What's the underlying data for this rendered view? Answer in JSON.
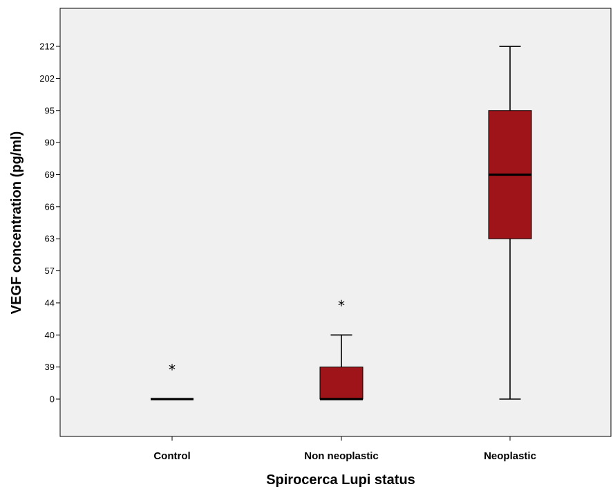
{
  "chart_data": {
    "type": "boxplot",
    "xlabel": "Spirocerca Lupi status",
    "ylabel": "VEGF concentration (pg/ml)",
    "y_tick_labels": [
      "0",
      "39",
      "40",
      "44",
      "57",
      "63",
      "66",
      "69",
      "90",
      "95",
      "202",
      "212"
    ],
    "y_scale": "categorical-rank",
    "grid": false,
    "categories": [
      "Control",
      "Non neoplastic",
      "Neoplastic"
    ],
    "boxes": [
      {
        "category": "Control",
        "whisker_low": "0",
        "q1": "0",
        "median": "0",
        "q3": "0",
        "whisker_high": "0",
        "outliers": [
          "39"
        ]
      },
      {
        "category": "Non neoplastic",
        "whisker_low": "0",
        "q1": "0",
        "median": "0",
        "q3": "39",
        "whisker_high": "40",
        "outliers": [
          "44"
        ]
      },
      {
        "category": "Neoplastic",
        "whisker_low": "0",
        "q1": "63",
        "median": "69",
        "q3": "95",
        "whisker_high": "212",
        "outliers": []
      }
    ],
    "outlier_marker": "*",
    "colors": {
      "box_fill": "#9e1419",
      "plot_background": "#f0f0f0",
      "line": "#000000"
    }
  }
}
